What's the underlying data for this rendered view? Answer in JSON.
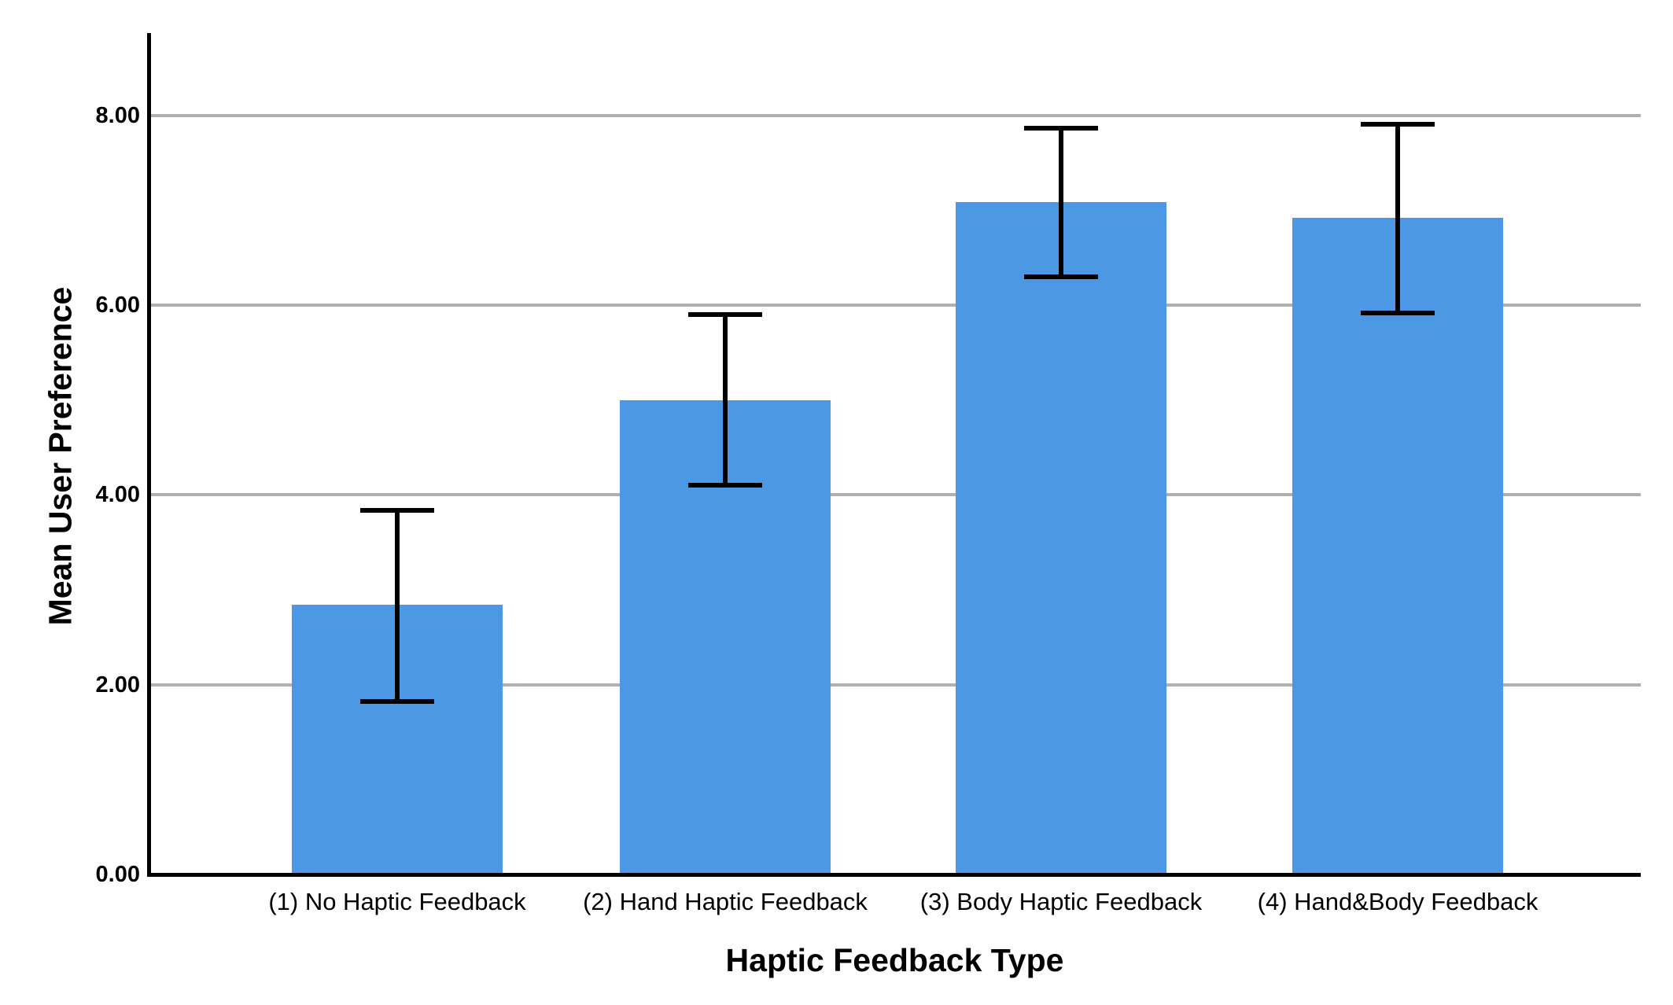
{
  "chart_data": {
    "type": "bar",
    "title": "",
    "xlabel": "Haptic Feedback Type",
    "ylabel": "Mean User Preference",
    "categories": [
      "(1) No Haptic Feedback",
      "(2) Hand Haptic Feedback",
      "(3) Body Haptic Feedback",
      "(4) Hand&Body Feedback"
    ],
    "series": [
      {
        "name": "Mean User Preference",
        "values": [
          2.84,
          5.0,
          7.09,
          6.92
        ],
        "error_low": [
          1.82,
          4.1,
          6.3,
          5.92
        ],
        "error_high": [
          3.84,
          5.9,
          7.87,
          7.91
        ]
      }
    ],
    "y_ticks": [
      {
        "label": "0.00",
        "value": 0
      },
      {
        "label": "2.00",
        "value": 2
      },
      {
        "label": "4.00",
        "value": 4
      },
      {
        "label": "6.00",
        "value": 6
      },
      {
        "label": "8.00",
        "value": 8
      }
    ],
    "ylim": [
      0,
      8.87
    ],
    "grid": true,
    "legend_position": "none",
    "bar_color": "#4D98E4",
    "gridline_color": "#B0B0B0",
    "axis_color": "#000000",
    "error_bar_color": "#000000",
    "background_color": "#FFFFFF"
  }
}
